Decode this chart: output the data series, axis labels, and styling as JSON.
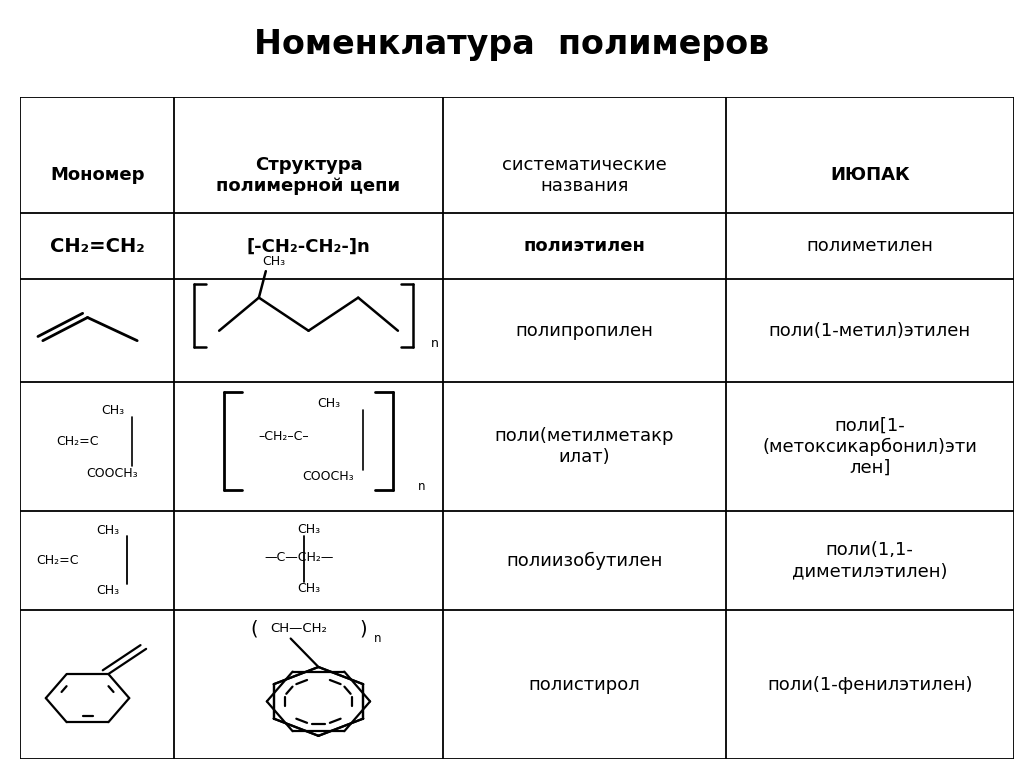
{
  "title": "Номенклатура  полимеров",
  "title_bg": "#f0fae0",
  "page_bg": "#ffffff",
  "col_headers": [
    "Мономер",
    "Структура\nполимерной цепи",
    "систематические\nназвания",
    "ИЮПАК"
  ],
  "col_header_bold": [
    true,
    true,
    false,
    true
  ],
  "row1_monomer": "CH₂=CH₂",
  "row1_structure": "[-CH₂-CH₂-]n",
  "row1_systematic": "полиэтилен",
  "row1_iupac": "полиметилен",
  "row2_systematic": "полипропилен",
  "row2_iupac": "поли(1-метил)этилен",
  "row3_systematic": "поли(метилметакр\nилат)",
  "row3_iupac": "поли[1-\n(метоксикарбонил)эти\nлен]",
  "row4_systematic": "полиизобутилен",
  "row4_iupac": "поли(1,1-\nдиметилэтилен)",
  "row5_systematic": "полистирол",
  "row5_iupac": "поли(1-фенилэтилен)",
  "font_size_title": 24,
  "font_size_header": 13,
  "font_size_cell": 13,
  "font_size_chem": 9,
  "text_color": "#000000",
  "line_color": "#000000"
}
